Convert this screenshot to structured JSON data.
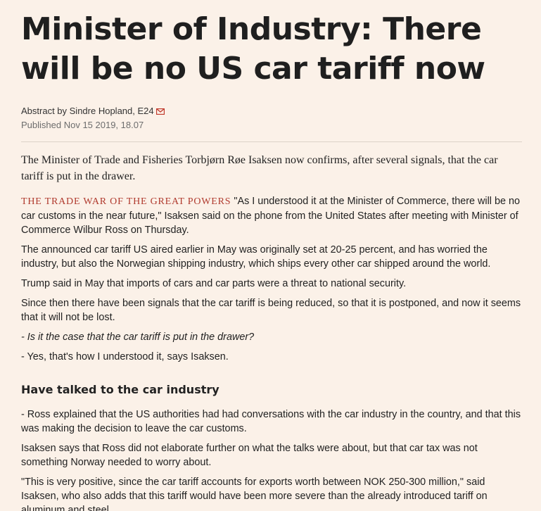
{
  "article": {
    "title": "Minister of Industry: There will be no US car tariff now",
    "byline": "Abstract by Sindre Hopland, E24",
    "published": "Published Nov 15 2019, 18.07",
    "lead": "The Minister of Trade and Fisheries Torbjørn Røe Isaksen now confirms, after several signals, that the car tariff is put in the drawer.",
    "kicker": "The trade war of the great powers",
    "p1": "\"As I understood it at the Minister of Commerce, there will be no car customs in the near future,\" Isaksen said on the phone from the United States after meeting with Minister of Commerce Wilbur Ross on Thursday.",
    "p2": "The announced car tariff US aired earlier in May was originally set at 20-25 percent, and has worried the industry, but also the Norwegian shipping industry, which ships every other car shipped around the world.",
    "p3": "Trump said in May that imports of cars and car parts were a threat to national security.",
    "p4": "Since then there have been signals that the car tariff is being reduced, so that it is postponed, and now it seems that it will not be lost.",
    "p5": "- Is it the case that the car tariff is put in the drawer?",
    "p6": "- Yes, that's how I understood it, says Isaksen.",
    "subhead": "Have talked to the car industry",
    "p7": "- Ross explained that the US authorities had had conversations with the car industry in the country, and that this was making the decision to leave the car customs.",
    "p8": "Isaksen says that Ross did not elaborate further on what the talks were about, but that car tax was not something Norway needed to worry about.",
    "p9": "\"This is very positive, since the car tariff accounts for exports worth between NOK 250-300 million,\" said Isaksen, who also adds that this tariff would have been more severe than the already introduced tariff on aluminum and steel."
  },
  "icons": {
    "mail": "mail-icon"
  },
  "colors": {
    "background": "#fbf1e8",
    "kicker": "#b03a2e",
    "mail_icon": "#c0392b"
  }
}
